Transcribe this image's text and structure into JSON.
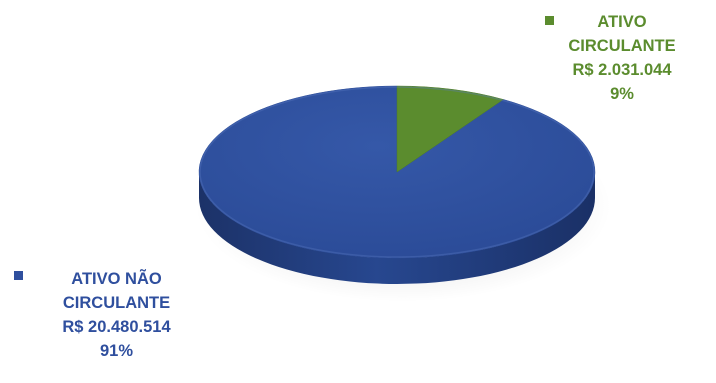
{
  "chart_data": {
    "type": "pie",
    "style": "3d",
    "slices": [
      {
        "label": "ATIVO NÃO CIRCULANTE",
        "value": 20480514,
        "value_label": "R$ 20.480.514",
        "percent_label": "91%",
        "percent": 91,
        "color": "#2f4f9e"
      },
      {
        "label": "ATIVO CIRCULANTE",
        "value": 2031044,
        "value_label": "R$ 2.031.044",
        "percent_label": "9%",
        "percent": 9,
        "color": "#5b8c2e"
      }
    ],
    "labels": {
      "ativo_circulante": {
        "line1": "ATIVO",
        "line2": "CIRCULANTE",
        "value": "R$ 2.031.044",
        "percent": "9%"
      },
      "ativo_nao_circulante": {
        "line1": "ATIVO NÃO",
        "line2": "CIRCULANTE",
        "value": "R$ 20.480.514",
        "percent": "91%"
      }
    },
    "label_colors": {
      "ativo_circulante": "#5b8c2e",
      "ativo_nao_circulante": "#2f4f9e"
    }
  }
}
